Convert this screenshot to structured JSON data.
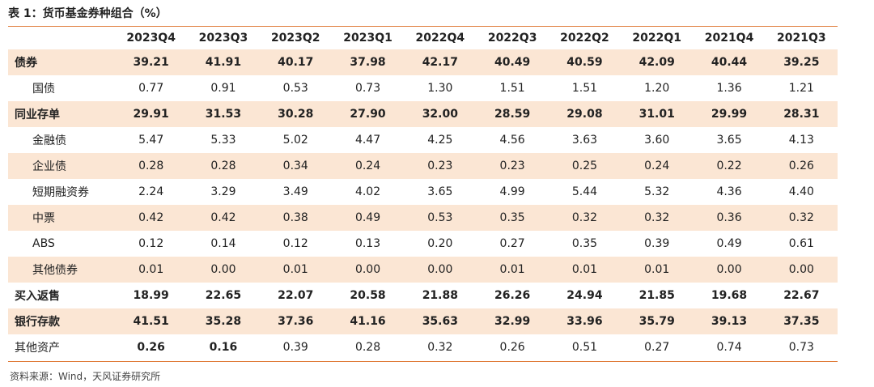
{
  "title": "表 1：货币基金券种组合（%）",
  "source": "资料来源：Wind，天风证券研究所",
  "columns": [
    "2023Q4",
    "2023Q3",
    "2023Q2",
    "2023Q1",
    "2022Q4",
    "2022Q3",
    "2022Q2",
    "2022Q1",
    "2021Q4",
    "2021Q3"
  ],
  "rows": [
    {
      "label": "债券",
      "values": [
        "39.21",
        "41.91",
        "40.17",
        "37.98",
        "42.17",
        "40.49",
        "40.59",
        "42.09",
        "40.44",
        "39.25"
      ]
    },
    {
      "label": "国债",
      "values": [
        "0.77",
        "0.91",
        "0.53",
        "0.73",
        "1.30",
        "1.51",
        "1.51",
        "1.20",
        "1.36",
        "1.21"
      ]
    },
    {
      "label": "同业存单",
      "values": [
        "29.91",
        "31.53",
        "30.28",
        "27.90",
        "32.00",
        "28.59",
        "29.08",
        "31.01",
        "29.99",
        "28.31"
      ]
    },
    {
      "label": "金融债",
      "values": [
        "5.47",
        "5.33",
        "5.02",
        "4.47",
        "4.25",
        "4.56",
        "3.63",
        "3.60",
        "3.65",
        "4.13"
      ]
    },
    {
      "label": "企业债",
      "values": [
        "0.28",
        "0.28",
        "0.34",
        "0.24",
        "0.23",
        "0.23",
        "0.25",
        "0.24",
        "0.22",
        "0.26"
      ]
    },
    {
      "label": "短期融资券",
      "values": [
        "2.24",
        "3.29",
        "3.49",
        "4.02",
        "3.65",
        "4.99",
        "5.44",
        "5.32",
        "4.36",
        "4.40"
      ]
    },
    {
      "label": "中票",
      "values": [
        "0.42",
        "0.42",
        "0.38",
        "0.49",
        "0.53",
        "0.35",
        "0.32",
        "0.32",
        "0.36",
        "0.32"
      ]
    },
    {
      "label": "ABS",
      "values": [
        "0.12",
        "0.14",
        "0.12",
        "0.13",
        "0.20",
        "0.27",
        "0.35",
        "0.39",
        "0.49",
        "0.61"
      ]
    },
    {
      "label": "其他债券",
      "values": [
        "0.01",
        "0.00",
        "0.01",
        "0.00",
        "0.00",
        "0.01",
        "0.01",
        "0.01",
        "0.00",
        "0.00"
      ]
    },
    {
      "label": "买入返售",
      "values": [
        "18.99",
        "22.65",
        "22.07",
        "20.58",
        "21.88",
        "26.26",
        "24.94",
        "21.85",
        "19.68",
        "22.67"
      ]
    },
    {
      "label": "银行存款",
      "values": [
        "41.51",
        "35.28",
        "37.36",
        "41.16",
        "35.63",
        "32.99",
        "33.96",
        "35.79",
        "39.13",
        "37.35"
      ]
    },
    {
      "label": "其他资产",
      "values": [
        "0.26",
        "0.16",
        "0.39",
        "0.28",
        "0.32",
        "0.26",
        "0.51",
        "0.27",
        "0.74",
        "0.73"
      ]
    }
  ]
}
